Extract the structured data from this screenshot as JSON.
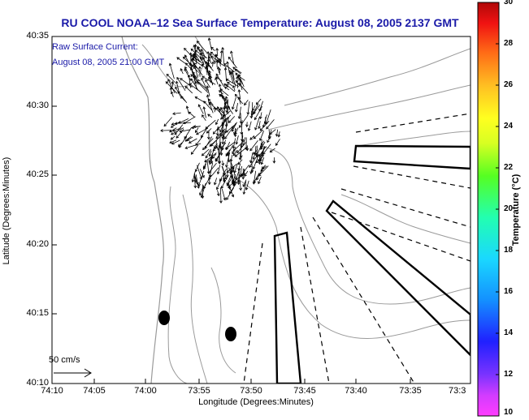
{
  "title": "RU COOL  NOAA–12  Sea Surface Temperature:  August 08, 2005 2137 GMT",
  "annotation": {
    "line1": "Raw Surface Current:",
    "line2": "August 08, 2005 21:00 GMT"
  },
  "y_axis": {
    "label": "Latitude (Degrees:Minutes)",
    "ticks": [
      "40:35",
      "40:30",
      "40:25",
      "40:20",
      "40:15",
      "40:10"
    ]
  },
  "x_axis": {
    "label": "Longitude (Degrees:Minutes)",
    "ticks": [
      "74:10",
      "74:05",
      "74:00",
      "73:55",
      "73:50",
      "73:45",
      "73:40",
      "73:35",
      "73:3"
    ]
  },
  "colorbar": {
    "label": "Temperature (°C)",
    "ticks": [
      "30",
      "28",
      "26",
      "24",
      "22",
      "20",
      "18",
      "16",
      "14",
      "12",
      "10"
    ],
    "min": 10,
    "max": 30
  },
  "scale": {
    "label": "50 cm/s"
  },
  "colors": {
    "title": "#1a1aa8",
    "contour": "#9a9a9a",
    "outline": "#000000"
  }
}
